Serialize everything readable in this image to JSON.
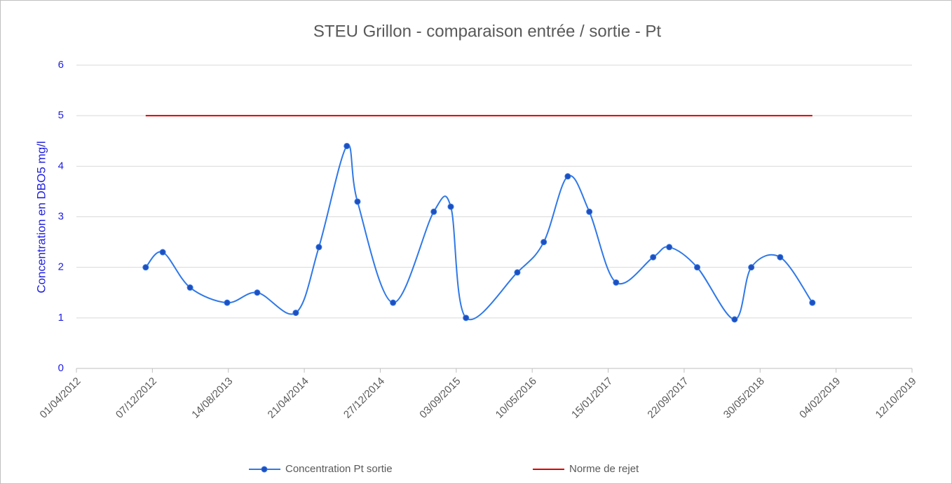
{
  "chart_data": {
    "type": "line",
    "title": "STEU Grillon - comparaison entrée / sortie - Pt",
    "y_label": "Concentration en DBO5 mg/l",
    "series": [
      {
        "name": "Concentration Pt sortie",
        "color": "#2f78e8",
        "marker_color": "#1f4fbf",
        "x": [
          "15/11/2012",
          "10/01/2013",
          "10/04/2013",
          "10/08/2013",
          "17/11/2013",
          "24/03/2014",
          "08/06/2014",
          "08/09/2014",
          "13/10/2014",
          "07/02/2015",
          "21/06/2015",
          "16/08/2015",
          "05/10/2015",
          "22/03/2016",
          "17/06/2016",
          "04/09/2016",
          "14/11/2016",
          "10/02/2017",
          "12/06/2017",
          "04/08/2017",
          "04/11/2017",
          "07/03/2018",
          "01/05/2018",
          "04/08/2018",
          "18/11/2018"
        ],
        "values": [
          2.0,
          2.3,
          1.6,
          1.3,
          1.5,
          1.1,
          2.4,
          4.4,
          3.3,
          1.3,
          3.1,
          3.2,
          1.0,
          1.9,
          2.5,
          3.8,
          3.1,
          1.7,
          2.2,
          2.4,
          2.0,
          0.97,
          2.0,
          2.2,
          1.3
        ]
      },
      {
        "name": "Norme de rejet",
        "color": "#e00000",
        "x": [
          "15/11/2012",
          "18/11/2018"
        ],
        "values": [
          5,
          5
        ]
      }
    ],
    "xlim": [
      "01/04/2012",
      "12/10/2019"
    ],
    "xticks": [
      "01/04/2012",
      "07/12/2012",
      "14/08/2013",
      "21/04/2014",
      "27/12/2014",
      "03/09/2015",
      "10/05/2016",
      "15/01/2017",
      "22/09/2017",
      "30/05/2018",
      "04/02/2019",
      "12/10/2019"
    ],
    "ylim": [
      0,
      6
    ],
    "yticks": [
      0,
      1,
      2,
      3,
      4,
      5,
      6
    ],
    "grid": true,
    "smooth": true,
    "legend": "bottom"
  }
}
